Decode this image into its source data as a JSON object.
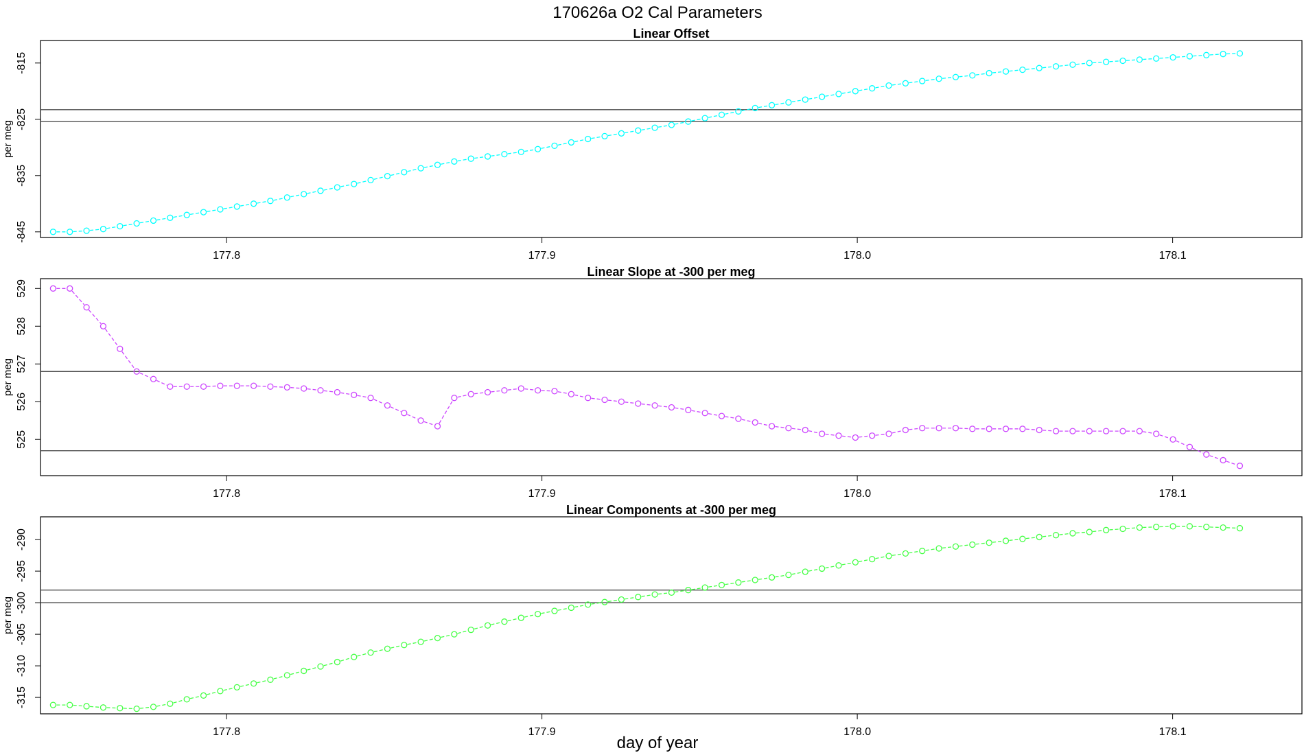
{
  "page_title": "170626a   O2 Cal Parameters",
  "xlabel": "day of year",
  "chart_data": [
    {
      "type": "line",
      "title": "Linear Offset",
      "ylabel": "per meg",
      "color": "#00ffff",
      "xlim": [
        177.741,
        178.141
      ],
      "ylim": [
        -846,
        -811
      ],
      "xticks": [
        177.8,
        177.9,
        178.0,
        178.1
      ],
      "xtick_labels": [
        "177.8",
        "177.9",
        "178.0",
        "178.1"
      ],
      "yticks": [
        -815,
        -825,
        -835,
        -845
      ],
      "ytick_labels": [
        "-815",
        "-825",
        "-835",
        "-845"
      ],
      "hlines": [
        -823.3,
        -825.4
      ],
      "series": [
        {
          "x": [
            177.745,
            177.7503,
            177.7556,
            177.7609,
            177.7662,
            177.7715,
            177.7768,
            177.7821,
            177.7874,
            177.7927,
            177.798,
            177.8033,
            177.8086,
            177.8139,
            177.8192,
            177.8245,
            177.8298,
            177.8351,
            177.8404,
            177.8457,
            177.851,
            177.8563,
            177.8616,
            177.8669,
            177.8722,
            177.8775,
            177.8828,
            177.8881,
            177.8934,
            177.8987,
            177.904,
            177.9093,
            177.9146,
            177.9199,
            177.9252,
            177.9305,
            177.9358,
            177.9411,
            177.9464,
            177.9517,
            177.957,
            177.9623,
            177.9676,
            177.9729,
            177.9782,
            177.9835,
            177.9888,
            177.9941,
            177.9994,
            178.0047,
            178.01,
            178.0153,
            178.0206,
            178.0259,
            178.0312,
            178.0365,
            178.0418,
            178.0471,
            178.0524,
            178.0577,
            178.063,
            178.0683,
            178.0736,
            178.0789,
            178.0842,
            178.0895,
            178.0948,
            178.1001,
            178.1054,
            178.1107,
            178.116,
            178.1213
          ],
          "y": [
            -845.0,
            -845.0,
            -844.8,
            -844.5,
            -844.0,
            -843.5,
            -843.0,
            -842.5,
            -842.0,
            -841.5,
            -841.0,
            -840.5,
            -840.0,
            -839.5,
            -838.9,
            -838.3,
            -837.7,
            -837.1,
            -836.5,
            -835.8,
            -835.1,
            -834.4,
            -833.7,
            -833.1,
            -832.5,
            -832.0,
            -831.6,
            -831.2,
            -830.8,
            -830.3,
            -829.7,
            -829.1,
            -828.5,
            -828.0,
            -827.5,
            -827.0,
            -826.5,
            -826.0,
            -825.4,
            -824.8,
            -824.2,
            -823.6,
            -823.0,
            -822.5,
            -822.0,
            -821.5,
            -821.0,
            -820.5,
            -820.0,
            -819.5,
            -819.0,
            -818.6,
            -818.2,
            -817.8,
            -817.5,
            -817.2,
            -816.8,
            -816.5,
            -816.2,
            -815.9,
            -815.6,
            -815.3,
            -815.0,
            -814.8,
            -814.6,
            -814.4,
            -814.2,
            -814.0,
            -813.8,
            -813.6,
            -813.4,
            -813.3
          ]
        }
      ]
    },
    {
      "type": "line",
      "title": "Linear Slope at -300 per meg",
      "ylabel": "per meg",
      "color": "#cc44ff",
      "xlim": [
        177.741,
        178.141
      ],
      "ylim": [
        524.04,
        529.26
      ],
      "xticks": [
        177.8,
        177.9,
        178.0,
        178.1
      ],
      "xtick_labels": [
        "177.8",
        "177.9",
        "178.0",
        "178.1"
      ],
      "yticks": [
        525,
        526,
        527,
        528,
        529
      ],
      "ytick_labels": [
        "525",
        "526",
        "527",
        "528",
        "529"
      ],
      "hlines": [
        526.8,
        524.7
      ],
      "series": [
        {
          "x": [
            177.745,
            177.7503,
            177.7556,
            177.7609,
            177.7662,
            177.7715,
            177.7768,
            177.7821,
            177.7874,
            177.7927,
            177.798,
            177.8033,
            177.8086,
            177.8139,
            177.8192,
            177.8245,
            177.8298,
            177.8351,
            177.8404,
            177.8457,
            177.851,
            177.8563,
            177.8616,
            177.8669,
            177.8722,
            177.8775,
            177.8828,
            177.8881,
            177.8934,
            177.8987,
            177.904,
            177.9093,
            177.9146,
            177.9199,
            177.9252,
            177.9305,
            177.9358,
            177.9411,
            177.9464,
            177.9517,
            177.957,
            177.9623,
            177.9676,
            177.9729,
            177.9782,
            177.9835,
            177.9888,
            177.9941,
            177.9994,
            178.0047,
            178.01,
            178.0153,
            178.0206,
            178.0259,
            178.0312,
            178.0365,
            178.0418,
            178.0471,
            178.0524,
            178.0577,
            178.063,
            178.0683,
            178.0736,
            178.0789,
            178.0842,
            178.0895,
            178.0948,
            178.1001,
            178.1054,
            178.1107,
            178.116,
            178.1213
          ],
          "y": [
            529.0,
            529.0,
            528.5,
            528.0,
            527.4,
            526.8,
            526.6,
            526.4,
            526.4,
            526.4,
            526.42,
            526.42,
            526.42,
            526.4,
            526.38,
            526.35,
            526.3,
            526.25,
            526.18,
            526.1,
            525.9,
            525.7,
            525.5,
            525.35,
            526.1,
            526.2,
            526.25,
            526.3,
            526.35,
            526.3,
            526.28,
            526.2,
            526.1,
            526.05,
            526.0,
            525.95,
            525.9,
            525.85,
            525.78,
            525.7,
            525.62,
            525.55,
            525.45,
            525.35,
            525.3,
            525.25,
            525.15,
            525.1,
            525.05,
            525.1,
            525.15,
            525.25,
            525.3,
            525.3,
            525.3,
            525.28,
            525.28,
            525.28,
            525.28,
            525.25,
            525.22,
            525.22,
            525.22,
            525.22,
            525.22,
            525.22,
            525.15,
            525.0,
            524.8,
            524.6,
            524.45,
            524.3
          ]
        }
      ]
    },
    {
      "type": "line",
      "title": "Linear Components at -300 per meg",
      "ylabel": "per meg",
      "color": "#44ff44",
      "xlim": [
        177.741,
        178.141
      ],
      "ylim": [
        -317.6,
        -286.4
      ],
      "xticks": [
        177.8,
        177.9,
        178.0,
        178.1
      ],
      "xtick_labels": [
        "177.8",
        "177.9",
        "178.0",
        "178.1"
      ],
      "yticks": [
        -290,
        -295,
        -300,
        -305,
        -310,
        -315
      ],
      "ytick_labels": [
        "-290",
        "-295",
        "-300",
        "-305",
        "-310",
        "-315"
      ],
      "hlines": [
        -298.0,
        -300.0
      ],
      "series": [
        {
          "x": [
            177.745,
            177.7503,
            177.7556,
            177.7609,
            177.7662,
            177.7715,
            177.7768,
            177.7821,
            177.7874,
            177.7927,
            177.798,
            177.8033,
            177.8086,
            177.8139,
            177.8192,
            177.8245,
            177.8298,
            177.8351,
            177.8404,
            177.8457,
            177.851,
            177.8563,
            177.8616,
            177.8669,
            177.8722,
            177.8775,
            177.8828,
            177.8881,
            177.8934,
            177.8987,
            177.904,
            177.9093,
            177.9146,
            177.9199,
            177.9252,
            177.9305,
            177.9358,
            177.9411,
            177.9464,
            177.9517,
            177.957,
            177.9623,
            177.9676,
            177.9729,
            177.9782,
            177.9835,
            177.9888,
            177.9941,
            177.9994,
            178.0047,
            178.01,
            178.0153,
            178.0206,
            178.0259,
            178.0312,
            178.0365,
            178.0418,
            178.0471,
            178.0524,
            178.0577,
            178.063,
            178.0683,
            178.0736,
            178.0789,
            178.0842,
            178.0895,
            178.0948,
            178.1001,
            178.1054,
            178.1107,
            178.116,
            178.1213
          ],
          "y": [
            -316.2,
            -316.2,
            -316.4,
            -316.6,
            -316.7,
            -316.8,
            -316.5,
            -316.0,
            -315.3,
            -314.7,
            -314.0,
            -313.4,
            -312.8,
            -312.2,
            -311.5,
            -310.8,
            -310.1,
            -309.4,
            -308.6,
            -307.9,
            -307.3,
            -306.7,
            -306.2,
            -305.6,
            -305.0,
            -304.3,
            -303.6,
            -303.0,
            -302.4,
            -301.8,
            -301.3,
            -300.8,
            -300.3,
            -299.9,
            -299.5,
            -299.1,
            -298.7,
            -298.4,
            -298.0,
            -297.6,
            -297.2,
            -296.8,
            -296.4,
            -296.0,
            -295.6,
            -295.1,
            -294.6,
            -294.1,
            -293.6,
            -293.1,
            -292.6,
            -292.2,
            -291.8,
            -291.4,
            -291.1,
            -290.8,
            -290.5,
            -290.2,
            -289.9,
            -289.6,
            -289.3,
            -289.0,
            -288.8,
            -288.5,
            -288.3,
            -288.1,
            -288.0,
            -287.9,
            -287.9,
            -288.0,
            -288.1,
            -288.2
          ]
        }
      ]
    }
  ]
}
